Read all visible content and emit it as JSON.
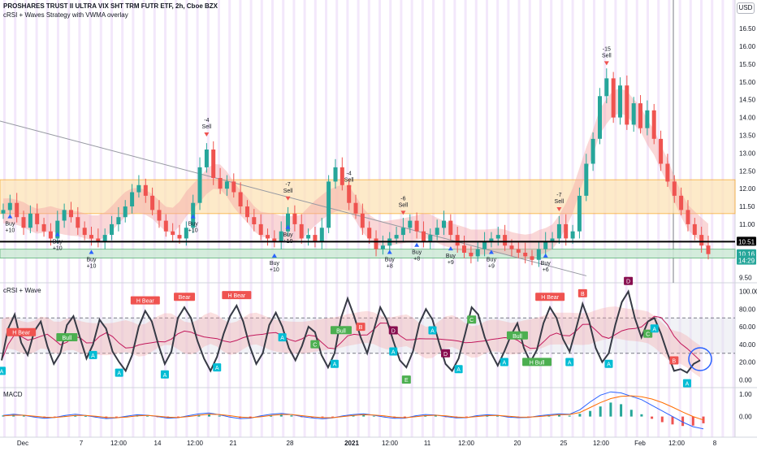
{
  "header": {
    "title": "PROSHARES TRUST II ULTRA VIX SHT TRM FUTR ETF, 2h, Cboe BZX",
    "subtitle": "cRSI + Waves Strategy with VWMA overlay",
    "currency": "USD"
  },
  "panes": {
    "rsi_name": "cRSI + Wave",
    "macd_name": "MACD"
  },
  "chart_data": [
    {
      "type": "candlestick",
      "title": "PROSHARES TRUST II ULTRA VIX SHT TRM FUTR ETF, 2h, Cboe BZX",
      "ylim": [
        9.4,
        16.8
      ],
      "y_ticks": [
        9.5,
        10.0,
        10.5,
        11.0,
        11.5,
        12.0,
        12.5,
        13.0,
        13.5,
        14.0,
        14.5,
        15.0,
        15.5,
        16.0,
        16.5
      ],
      "x_ticks": [
        "Dec",
        "7",
        "12:00",
        "14",
        "12:00",
        "21",
        "28",
        "2021",
        "12:00",
        "11",
        "12:00",
        "20",
        "25",
        "12:00",
        "Feb",
        "12:00",
        "8"
      ],
      "price_labels": [
        {
          "text": "10.51",
          "value": 10.51,
          "color": "#000000"
        },
        {
          "text": "10.16",
          "value": 10.16,
          "color": "#26a69a"
        },
        {
          "text": "14:29",
          "value": 9.98,
          "color": "#26a69a"
        }
      ],
      "close_path": [
        11.4,
        11.6,
        11.2,
        10.9,
        11.3,
        11.0,
        10.8,
        10.6,
        11.1,
        11.4,
        11.2,
        10.9,
        10.7,
        10.6,
        10.5,
        10.7,
        11.0,
        11.2,
        11.5,
        11.9,
        12.1,
        11.8,
        11.4,
        11.1,
        10.8,
        10.7,
        10.6,
        10.9,
        11.6,
        12.6,
        13.1,
        12.3,
        12.0,
        12.2,
        11.9,
        11.5,
        11.2,
        11.0,
        10.7,
        10.6,
        10.5,
        10.8,
        11.3,
        11.0,
        10.6,
        10.7,
        10.5,
        10.9,
        12.2,
        12.6,
        12.1,
        11.6,
        11.3,
        10.9,
        10.6,
        10.3,
        10.4,
        10.6,
        10.7,
        10.9,
        11.1,
        10.8,
        10.5,
        10.7,
        10.9,
        11.1,
        10.7,
        10.4,
        10.2,
        10.1,
        10.3,
        10.5,
        10.6,
        10.7,
        10.4,
        10.3,
        10.2,
        10.1,
        10.0,
        10.3,
        10.5,
        10.6,
        11.0,
        10.6,
        10.8,
        11.8,
        12.7,
        13.4,
        14.6,
        15.1,
        14.0,
        14.9,
        13.8,
        14.4,
        13.7,
        14.2,
        13.4,
        12.7,
        12.2,
        11.8,
        11.4,
        11.0,
        10.7,
        10.4,
        10.16
      ],
      "band_upper": [
        12.25,
        12.25
      ],
      "band_lower": [
        11.3,
        11.3
      ],
      "support_zone": [
        10.05,
        10.3
      ],
      "horizontal_line": 10.51,
      "trendline": [
        [
          0,
          13.9
        ],
        [
          100,
          9.55
        ]
      ],
      "signals": [
        {
          "label": "Buy +10",
          "kind": "buy"
        },
        {
          "label": "Buy +10",
          "kind": "buy"
        },
        {
          "label": "Buy +10",
          "kind": "buy"
        },
        {
          "label": "Buy +10",
          "kind": "buy"
        },
        {
          "label": "Buy +10",
          "kind": "buy"
        },
        {
          "label": "Buy +10",
          "kind": "buy"
        },
        {
          "label": "Buy +8",
          "kind": "buy"
        },
        {
          "label": "Buy +8",
          "kind": "buy"
        },
        {
          "label": "Buy +9",
          "kind": "buy"
        },
        {
          "label": "Buy +9",
          "kind": "buy"
        },
        {
          "label": "Buy +6",
          "kind": "buy"
        },
        {
          "label": "-4 Sell",
          "kind": "sell"
        },
        {
          "label": "-7 Sell",
          "kind": "sell"
        },
        {
          "label": "-4 Sell",
          "kind": "sell"
        },
        {
          "label": "-6 Sell",
          "kind": "sell"
        },
        {
          "label": "-7 Sell",
          "kind": "sell"
        },
        {
          "label": "-15 Sell",
          "kind": "sell"
        }
      ]
    },
    {
      "type": "line",
      "title": "cRSI + Wave",
      "ylim": [
        -8,
        108
      ],
      "y_ticks": [
        0.0,
        20.0,
        40.0,
        60.0,
        80.0,
        100.0
      ],
      "levels": [
        30,
        70
      ],
      "values": [
        22,
        58,
        74,
        42,
        28,
        55,
        66,
        38,
        18,
        30,
        62,
        72,
        48,
        24,
        40,
        68,
        58,
        32,
        20,
        10,
        28,
        60,
        78,
        66,
        40,
        18,
        32,
        70,
        82,
        70,
        44,
        24,
        10,
        26,
        52,
        72,
        84,
        66,
        38,
        18,
        30,
        62,
        76,
        60,
        36,
        22,
        38,
        60,
        54,
        28,
        14,
        30,
        70,
        92,
        72,
        48,
        30,
        56,
        82,
        68,
        44,
        22,
        14,
        32,
        64,
        80,
        68,
        42,
        18,
        10,
        24,
        52,
        82,
        74,
        48,
        30,
        16,
        32,
        50,
        64,
        36,
        20,
        34,
        64,
        82,
        70,
        46,
        32,
        58,
        86,
        66,
        36,
        20,
        30,
        62,
        88,
        100,
        70,
        48,
        66,
        70,
        52,
        30,
        10,
        12,
        8,
        18,
        22
      ],
      "markers": [
        "H Bear",
        "Bull",
        "H Bear",
        "Bear",
        "H Bear",
        "B",
        "C",
        "D",
        "E",
        "D",
        "C",
        "Bull",
        "H Bear",
        "B",
        "D",
        "C",
        "Bull",
        "H Bull",
        "B"
      ],
      "letters": [
        "A",
        "A",
        "A",
        "A",
        "A",
        "A",
        "A",
        "A",
        "A",
        "A",
        "A",
        "A",
        "A",
        "A",
        "A"
      ]
    },
    {
      "type": "bar",
      "title": "MACD",
      "ylim": [
        -0.7,
        1.25
      ],
      "y_ticks": [
        0.0,
        1.0
      ],
      "histogram": [
        0.05,
        0.08,
        0.04,
        -0.03,
        -0.06,
        -0.02,
        0.03,
        0.06,
        0.02,
        -0.04,
        -0.07,
        -0.03,
        0.02,
        0.05,
        0.03,
        -0.02,
        -0.05,
        -0.04,
        0.02,
        0.08,
        0.1,
        0.04,
        -0.03,
        -0.06,
        -0.05,
        0.02,
        0.06,
        0.09,
        0.05,
        -0.02,
        -0.05,
        -0.06,
        -0.03,
        0.02,
        0.05,
        0.07,
        0.03,
        -0.03,
        -0.06,
        -0.04,
        0.02,
        0.06,
        0.04,
        -0.02,
        -0.05,
        -0.03,
        0.03,
        0.06,
        0.04,
        -0.02,
        -0.04,
        -0.03,
        0.02,
        0.05,
        0.07,
        0.04,
        0.12,
        0.25,
        0.45,
        0.62,
        0.55,
        0.3,
        0.1,
        -0.1,
        -0.25,
        -0.35,
        -0.42,
        -0.4,
        -0.3
      ],
      "macd_line": [
        0.05,
        0.1,
        0.06,
        -0.02,
        -0.08,
        -0.04,
        0.05,
        0.1,
        0.05,
        -0.03,
        -0.09,
        -0.06,
        0.02,
        0.08,
        0.06,
        0.0,
        -0.07,
        -0.05,
        0.04,
        0.12,
        0.16,
        0.08,
        -0.02,
        -0.09,
        -0.07,
        0.03,
        0.1,
        0.14,
        0.09,
        0.0,
        -0.06,
        -0.1,
        -0.06,
        0.03,
        0.09,
        0.12,
        0.06,
        -0.02,
        -0.08,
        -0.07,
        0.03,
        0.09,
        0.07,
        0.0,
        -0.06,
        -0.05,
        0.04,
        0.08,
        0.06,
        -0.02,
        -0.05,
        -0.04,
        0.03,
        0.08,
        0.12,
        0.1,
        0.3,
        0.65,
        0.95,
        1.1,
        1.05,
        0.9,
        0.75,
        0.5,
        0.25,
        0.0,
        -0.25,
        -0.45,
        -0.55
      ],
      "signal_line": [
        0.03,
        0.06,
        0.06,
        0.02,
        -0.03,
        -0.04,
        0.0,
        0.05,
        0.05,
        0.01,
        -0.04,
        -0.05,
        -0.02,
        0.03,
        0.05,
        0.02,
        -0.03,
        -0.04,
        0.0,
        0.06,
        0.1,
        0.09,
        0.04,
        -0.02,
        -0.05,
        -0.01,
        0.05,
        0.09,
        0.09,
        0.04,
        -0.01,
        -0.05,
        -0.05,
        0.0,
        0.05,
        0.08,
        0.07,
        0.03,
        -0.03,
        -0.05,
        -0.01,
        0.04,
        0.06,
        0.03,
        -0.02,
        -0.04,
        0.0,
        0.04,
        0.05,
        0.02,
        -0.02,
        -0.03,
        0.0,
        0.04,
        0.08,
        0.09,
        0.18,
        0.4,
        0.62,
        0.8,
        0.9,
        0.92,
        0.88,
        0.78,
        0.62,
        0.42,
        0.2,
        0.0,
        -0.15
      ]
    }
  ]
}
